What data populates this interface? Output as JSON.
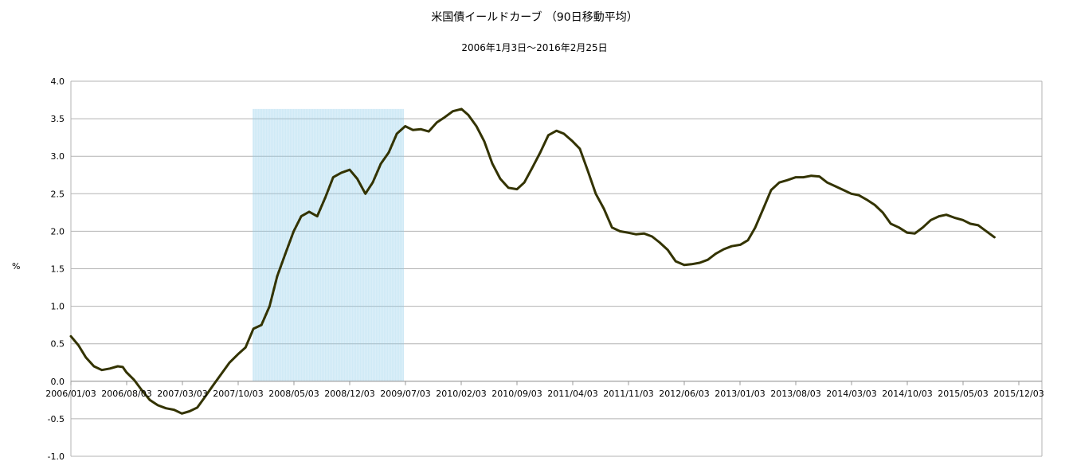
{
  "chart_data": {
    "type": "line",
    "title": "米国債イールドカーブ （90日移動平均）",
    "subtitle": "2006年1月3日～2016年2月25日",
    "ylabel": "%",
    "xlabel": "",
    "ylim": [
      -1.0,
      4.0
    ],
    "yticks": [
      "-1.0",
      "-0.5",
      "0.0",
      "0.5",
      "1.0",
      "1.5",
      "2.0",
      "2.5",
      "3.0",
      "3.5",
      "4.0"
    ],
    "xticks": [
      "2006/01/03",
      "2006/08/03",
      "2007/03/03",
      "2007/10/03",
      "2008/05/03",
      "2008/12/03",
      "2009/07/03",
      "2010/02/03",
      "2010/09/03",
      "2011/04/03",
      "2011/11/03",
      "2012/06/03",
      "2013/01/03",
      "2013/08/03",
      "2014/03/03",
      "2014/10/03",
      "2015/05/03",
      "2015/12/03"
    ],
    "grid": true,
    "colors": {
      "line": "#333300",
      "shade": "#8fcbe8",
      "grid": "#b3b3b3",
      "axis": "#b3b3b3"
    },
    "recession_shading": {
      "start": "2007/12/01",
      "end": "2009/06/30"
    },
    "series": [
      {
        "points": [
          [
            "2006/01/03",
            0.6
          ],
          [
            "2006/02/01",
            0.48
          ],
          [
            "2006/03/01",
            0.32
          ],
          [
            "2006/04/01",
            0.2
          ],
          [
            "2006/05/01",
            0.15
          ],
          [
            "2006/06/01",
            0.17
          ],
          [
            "2006/07/01",
            0.2
          ],
          [
            "2006/07/20",
            0.19
          ],
          [
            "2006/08/03",
            0.12
          ],
          [
            "2006/09/01",
            0.02
          ],
          [
            "2006/10/01",
            -0.12
          ],
          [
            "2006/11/01",
            -0.25
          ],
          [
            "2006/12/01",
            -0.32
          ],
          [
            "2007/01/01",
            -0.36
          ],
          [
            "2007/02/01",
            -0.38
          ],
          [
            "2007/03/03",
            -0.43
          ],
          [
            "2007/04/01",
            -0.4
          ],
          [
            "2007/05/01",
            -0.35
          ],
          [
            "2007/06/01",
            -0.2
          ],
          [
            "2007/07/01",
            -0.05
          ],
          [
            "2007/08/01",
            0.1
          ],
          [
            "2007/09/01",
            0.25
          ],
          [
            "2007/10/03",
            0.36
          ],
          [
            "2007/11/01",
            0.45
          ],
          [
            "2007/12/01",
            0.7
          ],
          [
            "2008/01/01",
            0.75
          ],
          [
            "2008/02/01",
            1.0
          ],
          [
            "2008/03/01",
            1.4
          ],
          [
            "2008/04/01",
            1.7
          ],
          [
            "2008/05/03",
            2.0
          ],
          [
            "2008/06/01",
            2.2
          ],
          [
            "2008/07/01",
            2.26
          ],
          [
            "2008/08/01",
            2.2
          ],
          [
            "2008/09/01",
            2.45
          ],
          [
            "2008/10/01",
            2.72
          ],
          [
            "2008/11/01",
            2.78
          ],
          [
            "2008/12/03",
            2.82
          ],
          [
            "2009/01/01",
            2.7
          ],
          [
            "2009/02/01",
            2.5
          ],
          [
            "2009/03/01",
            2.65
          ],
          [
            "2009/04/01",
            2.9
          ],
          [
            "2009/05/01",
            3.05
          ],
          [
            "2009/06/01",
            3.3
          ],
          [
            "2009/07/03",
            3.4
          ],
          [
            "2009/08/01",
            3.35
          ],
          [
            "2009/09/01",
            3.36
          ],
          [
            "2009/10/01",
            3.33
          ],
          [
            "2009/11/01",
            3.45
          ],
          [
            "2009/12/01",
            3.52
          ],
          [
            "2010/01/01",
            3.6
          ],
          [
            "2010/02/03",
            3.63
          ],
          [
            "2010/03/01",
            3.55
          ],
          [
            "2010/04/01",
            3.4
          ],
          [
            "2010/05/01",
            3.2
          ],
          [
            "2010/06/01",
            2.9
          ],
          [
            "2010/07/01",
            2.7
          ],
          [
            "2010/08/01",
            2.58
          ],
          [
            "2010/09/03",
            2.56
          ],
          [
            "2010/10/01",
            2.65
          ],
          [
            "2010/11/01",
            2.85
          ],
          [
            "2010/12/01",
            3.05
          ],
          [
            "2011/01/01",
            3.28
          ],
          [
            "2011/02/01",
            3.34
          ],
          [
            "2011/03/01",
            3.3
          ],
          [
            "2011/04/03",
            3.2
          ],
          [
            "2011/05/01",
            3.1
          ],
          [
            "2011/06/01",
            2.8
          ],
          [
            "2011/07/01",
            2.5
          ],
          [
            "2011/08/01",
            2.3
          ],
          [
            "2011/09/01",
            2.05
          ],
          [
            "2011/10/01",
            2.0
          ],
          [
            "2011/11/03",
            1.98
          ],
          [
            "2011/12/01",
            1.96
          ],
          [
            "2012/01/01",
            1.97
          ],
          [
            "2012/02/01",
            1.93
          ],
          [
            "2012/03/01",
            1.85
          ],
          [
            "2012/04/01",
            1.75
          ],
          [
            "2012/05/01",
            1.6
          ],
          [
            "2012/06/03",
            1.55
          ],
          [
            "2012/07/01",
            1.56
          ],
          [
            "2012/08/01",
            1.58
          ],
          [
            "2012/09/01",
            1.62
          ],
          [
            "2012/10/01",
            1.7
          ],
          [
            "2012/11/01",
            1.76
          ],
          [
            "2012/12/01",
            1.8
          ],
          [
            "2013/01/03",
            1.82
          ],
          [
            "2013/02/01",
            1.88
          ],
          [
            "2013/03/01",
            2.05
          ],
          [
            "2013/04/01",
            2.3
          ],
          [
            "2013/05/01",
            2.55
          ],
          [
            "2013/06/01",
            2.65
          ],
          [
            "2013/07/01",
            2.68
          ],
          [
            "2013/08/03",
            2.72
          ],
          [
            "2013/09/01",
            2.72
          ],
          [
            "2013/10/01",
            2.74
          ],
          [
            "2013/11/01",
            2.73
          ],
          [
            "2013/12/01",
            2.65
          ],
          [
            "2014/01/01",
            2.6
          ],
          [
            "2014/02/01",
            2.55
          ],
          [
            "2014/03/03",
            2.5
          ],
          [
            "2014/04/01",
            2.48
          ],
          [
            "2014/05/01",
            2.42
          ],
          [
            "2014/06/01",
            2.35
          ],
          [
            "2014/07/01",
            2.25
          ],
          [
            "2014/08/01",
            2.1
          ],
          [
            "2014/09/01",
            2.05
          ],
          [
            "2014/10/03",
            1.98
          ],
          [
            "2014/11/01",
            1.97
          ],
          [
            "2014/12/01",
            2.05
          ],
          [
            "2015/01/01",
            2.15
          ],
          [
            "2015/02/01",
            2.2
          ],
          [
            "2015/03/01",
            2.22
          ],
          [
            "2015/04/01",
            2.18
          ],
          [
            "2015/05/03",
            2.15
          ],
          [
            "2015/06/01",
            2.1
          ],
          [
            "2015/07/01",
            2.08
          ],
          [
            "2015/08/01",
            2.0
          ],
          [
            "2015/09/01",
            1.92
          ]
        ]
      }
    ]
  }
}
